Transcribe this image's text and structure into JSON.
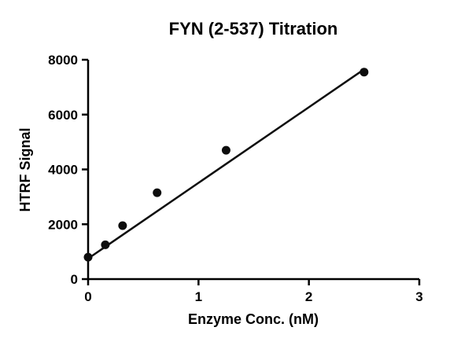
{
  "chart_data": {
    "type": "scatter",
    "title": "FYN (2-537) Titration",
    "xlabel": "Enzyme Conc. (nM)",
    "ylabel": "HTRF Signal",
    "xlim": [
      0,
      3
    ],
    "ylim": [
      0,
      8000
    ],
    "xticks": [
      0,
      1,
      2,
      3
    ],
    "yticks": [
      0,
      2000,
      4000,
      6000,
      8000
    ],
    "grid": false,
    "legend": "none",
    "points": {
      "x": [
        0,
        0.156,
        0.3125,
        0.625,
        1.25,
        2.5
      ],
      "y": [
        800,
        1250,
        1950,
        3150,
        4700,
        7550
      ]
    },
    "fit_line": {
      "x": [
        0,
        2.5
      ],
      "y": [
        750,
        7650
      ]
    },
    "style": {
      "point_color": "#0d0d0d",
      "line_color": "#0d0d0d",
      "axis_color": "#000000",
      "background": "#ffffff",
      "marker_radius": 5.5
    }
  }
}
